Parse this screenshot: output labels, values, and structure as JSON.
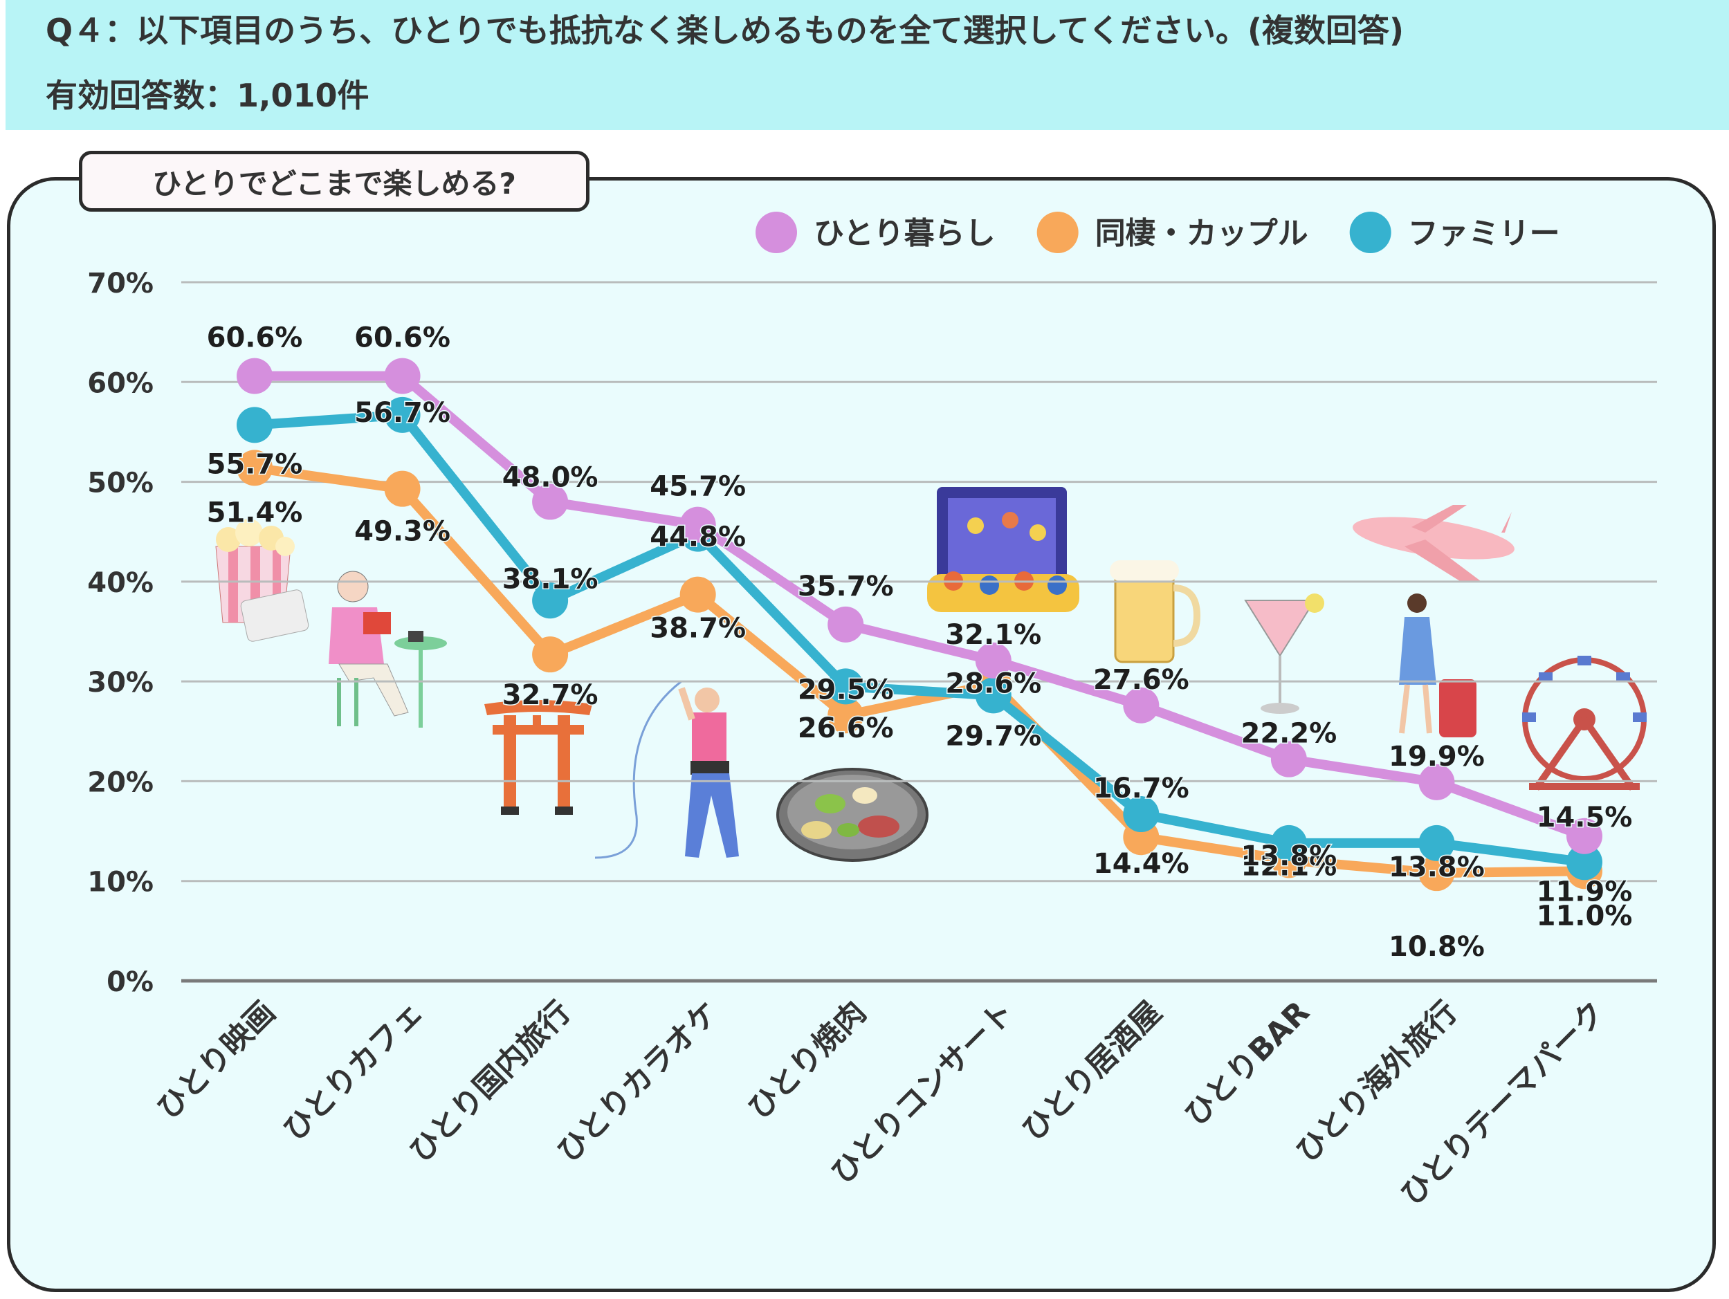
{
  "header": {
    "question": "Q４：以下項目のうち、ひとりでも抵抗なく楽しめるものを全て選択してください。(複数回答)",
    "responses": "有効回答数：1,010件"
  },
  "chart_data": {
    "type": "line",
    "title": "ひとりでどこまで楽しめる?",
    "xlabel": "",
    "ylabel": "",
    "ylim": [
      0,
      70
    ],
    "yticks": [
      "0%",
      "10%",
      "20%",
      "30%",
      "40%",
      "50%",
      "60%",
      "70%"
    ],
    "grid": true,
    "legend_position": "top-right",
    "categories": [
      "ひとり映画",
      "ひとりカフェ",
      "ひとり国内旅行",
      "ひとりカラオケ",
      "ひとり焼肉",
      "ひとりコンサート",
      "ひとり居酒屋",
      "ひとりBAR",
      "ひとり海外旅行",
      "ひとりテーマパーク"
    ],
    "series": [
      {
        "name": "ひとり暮らし",
        "color": "#d58fdd",
        "values": [
          60.6,
          60.6,
          48.0,
          45.7,
          35.7,
          32.1,
          27.6,
          22.2,
          19.9,
          14.5
        ],
        "labels": [
          "60.6%",
          "60.6%",
          "48.0%",
          "45.7%",
          "35.7%",
          "32.1%",
          "27.6%",
          "22.2%",
          "19.9%",
          "14.5%"
        ]
      },
      {
        "name": "同棲・カップル",
        "color": "#f8a85a",
        "values": [
          51.4,
          49.3,
          32.7,
          38.7,
          26.6,
          29.7,
          14.4,
          12.1,
          10.8,
          11.0
        ],
        "labels": [
          "51.4%",
          "49.3%",
          "32.7%",
          "38.7%",
          "26.6%",
          "29.7%",
          "14.4%",
          "12.1%",
          "10.8%",
          "11.0%"
        ]
      },
      {
        "name": "ファミリー",
        "color": "#36b2cf",
        "values": [
          55.7,
          56.7,
          38.1,
          44.8,
          29.5,
          28.6,
          16.7,
          13.8,
          13.8,
          11.9
        ],
        "labels": [
          "55.7%",
          "56.7%",
          "38.1%",
          "44.8%",
          "29.5%",
          "28.6%",
          "16.7%",
          "13.8%",
          "13.8%",
          "11.9%"
        ]
      }
    ]
  }
}
